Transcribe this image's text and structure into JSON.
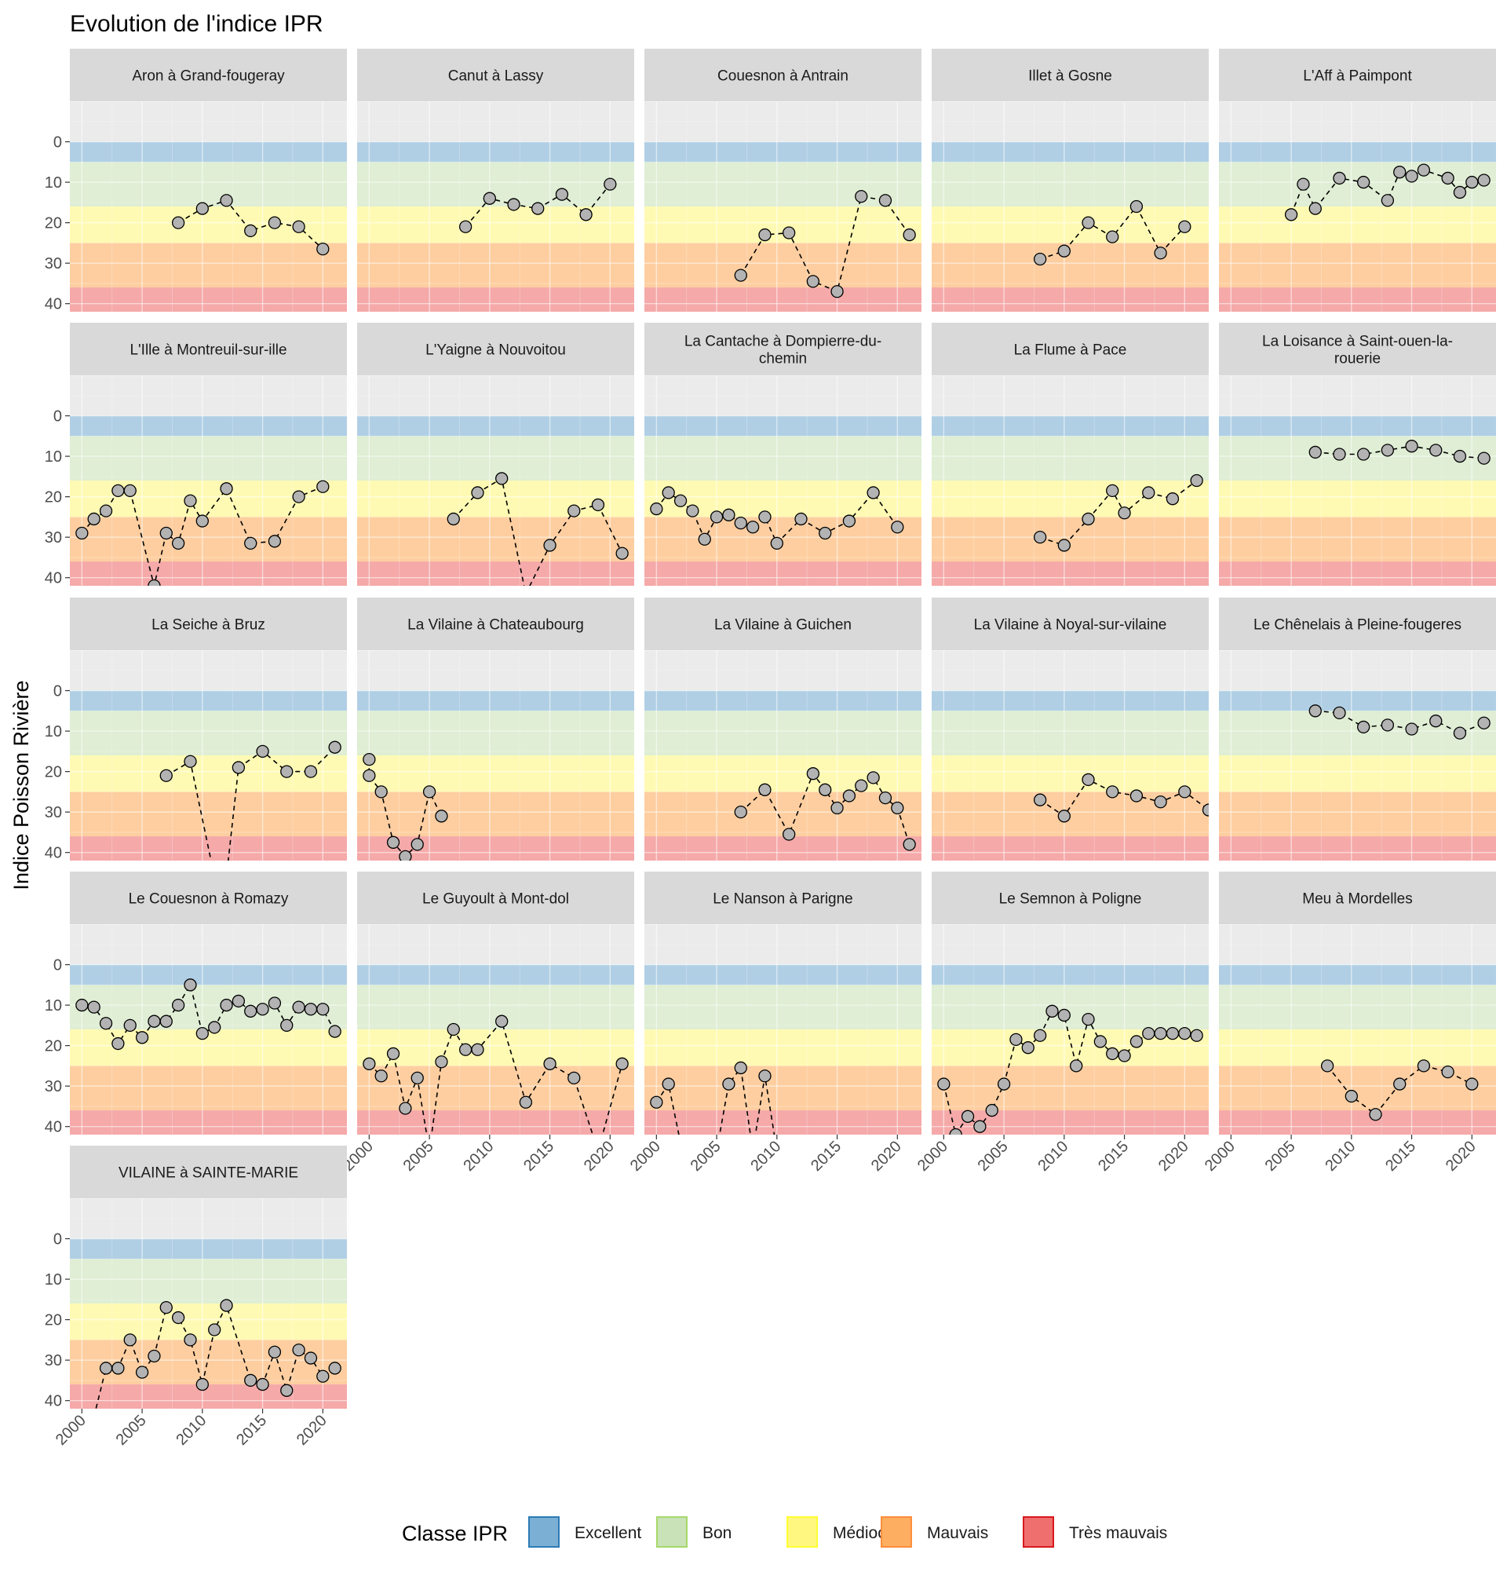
{
  "chart_data": {
    "type": "line",
    "title": "Evolution de l'indice IPR",
    "xlabel": "",
    "ylabel": "Indice Poisson Rivière",
    "xlim": [
      1999,
      2022
    ],
    "ylim": [
      42,
      -10
    ],
    "x_ticks": [
      2000,
      2005,
      2010,
      2015,
      2020
    ],
    "y_ticks": [
      0,
      10,
      20,
      30,
      40
    ],
    "y_reversed": true,
    "grid": true,
    "legend_title": "Classe IPR",
    "legend_position": "bottom",
    "bands": [
      {
        "name": "Excellent",
        "from": 0,
        "to": 5,
        "color": "#7BAFD4",
        "border": "#2C7BB6"
      },
      {
        "name": "Bon",
        "from": 5,
        "to": 16,
        "color": "#C9E2B8",
        "border": "#A6D96A"
      },
      {
        "name": "Médiocre",
        "from": 16,
        "to": 25,
        "color": "#FFF780",
        "border": "#FFFF33"
      },
      {
        "name": "Mauvais",
        "from": 25,
        "to": 36,
        "color": "#FDAE61",
        "border": "#FD8D3C"
      },
      {
        "name": "Très mauvais",
        "from": 36,
        "to": 42,
        "color": "#EF6F6F",
        "border": "#D7191C"
      }
    ],
    "panels": [
      {
        "title": "Aron à Grand-fougeray",
        "points": [
          [
            2008,
            20
          ],
          [
            2010,
            16.5
          ],
          [
            2012,
            14.5
          ],
          [
            2014,
            22
          ],
          [
            2016,
            20
          ],
          [
            2018,
            21
          ],
          [
            2020,
            26.5
          ]
        ]
      },
      {
        "title": "Canut à Lassy",
        "points": [
          [
            2008,
            21
          ],
          [
            2010,
            14
          ],
          [
            2012,
            15.5
          ],
          [
            2014,
            16.5
          ],
          [
            2016,
            13
          ],
          [
            2018,
            18
          ],
          [
            2020,
            10.5
          ]
        ]
      },
      {
        "title": "Couesnon à Antrain",
        "points": [
          [
            2007,
            33
          ],
          [
            2009,
            23
          ],
          [
            2011,
            22.5
          ],
          [
            2013,
            34.5
          ],
          [
            2015,
            37
          ],
          [
            2017,
            13.5
          ],
          [
            2019,
            14.5
          ],
          [
            2021,
            23
          ]
        ]
      },
      {
        "title": "Illet à Gosne",
        "points": [
          [
            2008,
            29
          ],
          [
            2010,
            27
          ],
          [
            2012,
            20
          ],
          [
            2014,
            23.5
          ],
          [
            2016,
            16
          ],
          [
            2018,
            27.5
          ],
          [
            2020,
            21
          ]
        ]
      },
      {
        "title": "L'Aff à Paimpont",
        "points": [
          [
            2005,
            18
          ],
          [
            2006,
            10.5
          ],
          [
            2007,
            16.5
          ],
          [
            2009,
            9
          ],
          [
            2011,
            10
          ],
          [
            2013,
            14.5
          ],
          [
            2014,
            7.5
          ],
          [
            2015,
            8.5
          ],
          [
            2016,
            7
          ],
          [
            2018,
            9
          ],
          [
            2019,
            12.5
          ],
          [
            2020,
            10
          ],
          [
            2021,
            9.5
          ]
        ]
      },
      {
        "title": "L'Ille à Montreuil-sur-ille",
        "points": [
          [
            2000,
            29
          ],
          [
            2001,
            25.5
          ],
          [
            2002,
            23.5
          ],
          [
            2003,
            18.5
          ],
          [
            2004,
            18.5
          ],
          [
            2006,
            42
          ],
          [
            2007,
            29
          ],
          [
            2008,
            31.5
          ],
          [
            2009,
            21
          ],
          [
            2010,
            26
          ],
          [
            2012,
            18
          ],
          [
            2014,
            31.5
          ],
          [
            2016,
            31
          ],
          [
            2018,
            20
          ],
          [
            2020,
            17.5
          ]
        ]
      },
      {
        "title": "L'Yaigne à Nouvoitou",
        "points": [
          [
            2007,
            25.5
          ],
          [
            2009,
            19
          ],
          [
            2011,
            15.5
          ],
          [
            2013,
            44
          ],
          [
            2015,
            32
          ],
          [
            2017,
            23.5
          ],
          [
            2019,
            22
          ],
          [
            2021,
            34
          ]
        ]
      },
      {
        "title": "La Cantache à Dompierre-du-chemin",
        "points": [
          [
            2000,
            23
          ],
          [
            2001,
            19
          ],
          [
            2002,
            21
          ],
          [
            2003,
            23.5
          ],
          [
            2004,
            30.5
          ],
          [
            2005,
            25
          ],
          [
            2006,
            24.5
          ],
          [
            2007,
            26.5
          ],
          [
            2008,
            27.5
          ],
          [
            2009,
            25
          ],
          [
            2010,
            31.5
          ],
          [
            2012,
            25.5
          ],
          [
            2014,
            29
          ],
          [
            2016,
            26
          ],
          [
            2018,
            19
          ],
          [
            2020,
            27.5
          ]
        ]
      },
      {
        "title": "La Flume à Pace",
        "points": [
          [
            2008,
            30
          ],
          [
            2010,
            32
          ],
          [
            2012,
            25.5
          ],
          [
            2014,
            18.5
          ],
          [
            2015,
            24
          ],
          [
            2017,
            19
          ],
          [
            2019,
            20.5
          ],
          [
            2021,
            16
          ]
        ]
      },
      {
        "title": "La Loisance à Saint-ouen-la-rouerie",
        "points": [
          [
            2007,
            9
          ],
          [
            2009,
            9.5
          ],
          [
            2011,
            9.5
          ],
          [
            2013,
            8.5
          ],
          [
            2015,
            7.5
          ],
          [
            2017,
            8.5
          ],
          [
            2019,
            10
          ],
          [
            2021,
            10.5
          ]
        ]
      },
      {
        "title": "La Seiche à Bruz",
        "points": [
          [
            2007,
            21
          ],
          [
            2009,
            17.5
          ],
          [
            2011,
            46
          ],
          [
            2012,
            46
          ],
          [
            2013,
            19
          ],
          [
            2015,
            15
          ],
          [
            2017,
            20
          ],
          [
            2019,
            20
          ],
          [
            2021,
            14
          ]
        ]
      },
      {
        "title": "La Vilaine à Chateaubourg",
        "points": [
          [
            2000,
            17
          ],
          [
            2000,
            21
          ],
          [
            2001,
            25
          ],
          [
            2002,
            37.5
          ],
          [
            2003,
            41
          ],
          [
            2004,
            38
          ],
          [
            2005,
            25
          ],
          [
            2006,
            31
          ]
        ]
      },
      {
        "title": "La Vilaine à Guichen",
        "points": [
          [
            2007,
            30
          ],
          [
            2009,
            24.5
          ],
          [
            2011,
            35.5
          ],
          [
            2013,
            20.5
          ],
          [
            2014,
            24.5
          ],
          [
            2015,
            29
          ],
          [
            2016,
            26
          ],
          [
            2017,
            23.5
          ],
          [
            2018,
            21.5
          ],
          [
            2019,
            26.5
          ],
          [
            2020,
            29
          ],
          [
            2021,
            38
          ]
        ]
      },
      {
        "title": "La Vilaine à Noyal-sur-vilaine",
        "points": [
          [
            2008,
            27
          ],
          [
            2010,
            31
          ],
          [
            2012,
            22
          ],
          [
            2014,
            25
          ],
          [
            2016,
            26
          ],
          [
            2018,
            27.5
          ],
          [
            2020,
            25
          ],
          [
            2022,
            29.5
          ]
        ]
      },
      {
        "title": "Le Chênelais à Pleine-fougeres",
        "points": [
          [
            2007,
            5
          ],
          [
            2009,
            5.5
          ],
          [
            2011,
            9
          ],
          [
            2013,
            8.5
          ],
          [
            2015,
            9.5
          ],
          [
            2017,
            7.5
          ],
          [
            2019,
            10.5
          ],
          [
            2021,
            8
          ]
        ]
      },
      {
        "title": "Le Couesnon à Romazy",
        "points": [
          [
            2000,
            10
          ],
          [
            2001,
            10.5
          ],
          [
            2002,
            14.5
          ],
          [
            2003,
            19.5
          ],
          [
            2004,
            15
          ],
          [
            2005,
            18
          ],
          [
            2006,
            14
          ],
          [
            2007,
            14
          ],
          [
            2008,
            10
          ],
          [
            2009,
            5
          ],
          [
            2010,
            17
          ],
          [
            2011,
            15.5
          ],
          [
            2012,
            10
          ],
          [
            2013,
            9
          ],
          [
            2014,
            11.5
          ],
          [
            2015,
            11
          ],
          [
            2016,
            9.5
          ],
          [
            2017,
            15
          ],
          [
            2018,
            10.5
          ],
          [
            2019,
            11
          ],
          [
            2020,
            11
          ],
          [
            2021,
            16.5
          ]
        ]
      },
      {
        "title": "Le Guyoult à Mont-dol",
        "points": [
          [
            2000,
            24.5
          ],
          [
            2001,
            27.5
          ],
          [
            2002,
            22
          ],
          [
            2003,
            35.5
          ],
          [
            2004,
            28
          ],
          [
            2005,
            46
          ],
          [
            2006,
            24
          ],
          [
            2007,
            16
          ],
          [
            2008,
            21
          ],
          [
            2009,
            21
          ],
          [
            2011,
            14
          ],
          [
            2013,
            34
          ],
          [
            2015,
            24.5
          ],
          [
            2017,
            28
          ],
          [
            2019,
            46
          ],
          [
            2021,
            24.5
          ]
        ]
      },
      {
        "title": "Le Nanson à Parigne",
        "points": [
          [
            2000,
            34
          ],
          [
            2001,
            29.5
          ],
          [
            2002,
            44
          ],
          [
            2005,
            46
          ],
          [
            2006,
            29.5
          ],
          [
            2007,
            25.5
          ],
          [
            2008,
            46
          ],
          [
            2009,
            27.5
          ],
          [
            2010,
            46
          ]
        ]
      },
      {
        "title": "Le Semnon à Poligne",
        "points": [
          [
            2000,
            29.5
          ],
          [
            2001,
            42
          ],
          [
            2002,
            37.5
          ],
          [
            2003,
            40
          ],
          [
            2004,
            36
          ],
          [
            2005,
            29.5
          ],
          [
            2006,
            18.5
          ],
          [
            2007,
            20.5
          ],
          [
            2008,
            17.5
          ],
          [
            2009,
            11.5
          ],
          [
            2010,
            12.5
          ],
          [
            2011,
            25
          ],
          [
            2012,
            13.5
          ],
          [
            2013,
            19
          ],
          [
            2014,
            22
          ],
          [
            2015,
            22.5
          ],
          [
            2016,
            19
          ],
          [
            2017,
            17
          ],
          [
            2018,
            17
          ],
          [
            2019,
            17
          ],
          [
            2020,
            17
          ],
          [
            2021,
            17.5
          ]
        ]
      },
      {
        "title": "Meu à Mordelles",
        "points": [
          [
            2008,
            25
          ],
          [
            2010,
            32.5
          ],
          [
            2012,
            37
          ],
          [
            2014,
            29.5
          ],
          [
            2016,
            25
          ],
          [
            2018,
            26.5
          ],
          [
            2020,
            29.5
          ]
        ]
      },
      {
        "title": "VILAINE à SAINTE-MARIE",
        "points": [
          [
            2001,
            44
          ],
          [
            2002,
            32
          ],
          [
            2003,
            32
          ],
          [
            2004,
            25
          ],
          [
            2005,
            33
          ],
          [
            2006,
            29
          ],
          [
            2007,
            17
          ],
          [
            2008,
            19.5
          ],
          [
            2009,
            25
          ],
          [
            2010,
            36
          ],
          [
            2011,
            22.5
          ],
          [
            2012,
            16.5
          ],
          [
            2014,
            35
          ],
          [
            2015,
            36
          ],
          [
            2016,
            28
          ],
          [
            2017,
            37.5
          ],
          [
            2018,
            27.5
          ],
          [
            2019,
            29.5
          ],
          [
            2020,
            34
          ],
          [
            2021,
            32
          ]
        ]
      }
    ]
  }
}
